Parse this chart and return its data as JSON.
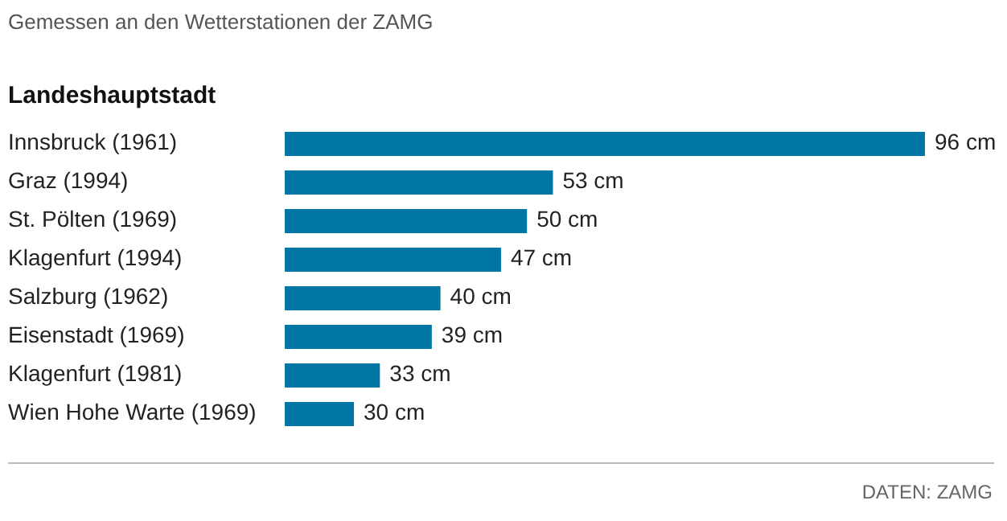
{
  "chart_data": {
    "type": "bar",
    "orientation": "horizontal",
    "title": "Gemessen an den Wetterstationen der ZAMG",
    "ylabel": "Landeshauptstadt",
    "categories": [
      "Innsbruck (1961)",
      "Graz (1994)",
      "St. Pölten (1969)",
      "Klagenfurt (1994)",
      "Salzburg (1962)",
      "Eisenstadt (1969)",
      "Klagenfurt (1981)",
      "Wien Hohe Warte (1969)"
    ],
    "values": [
      96,
      53,
      50,
      47,
      40,
      39,
      33,
      30
    ],
    "value_labels": [
      "96 cm",
      "53 cm",
      "50 cm",
      "47 cm",
      "40 cm",
      "39 cm",
      "33 cm",
      "30 cm"
    ],
    "color": "#0077a3",
    "xlim": [
      22,
      96
    ],
    "tick_labels": "y",
    "annotations": [
      "DATEN: ZAMG"
    ]
  }
}
